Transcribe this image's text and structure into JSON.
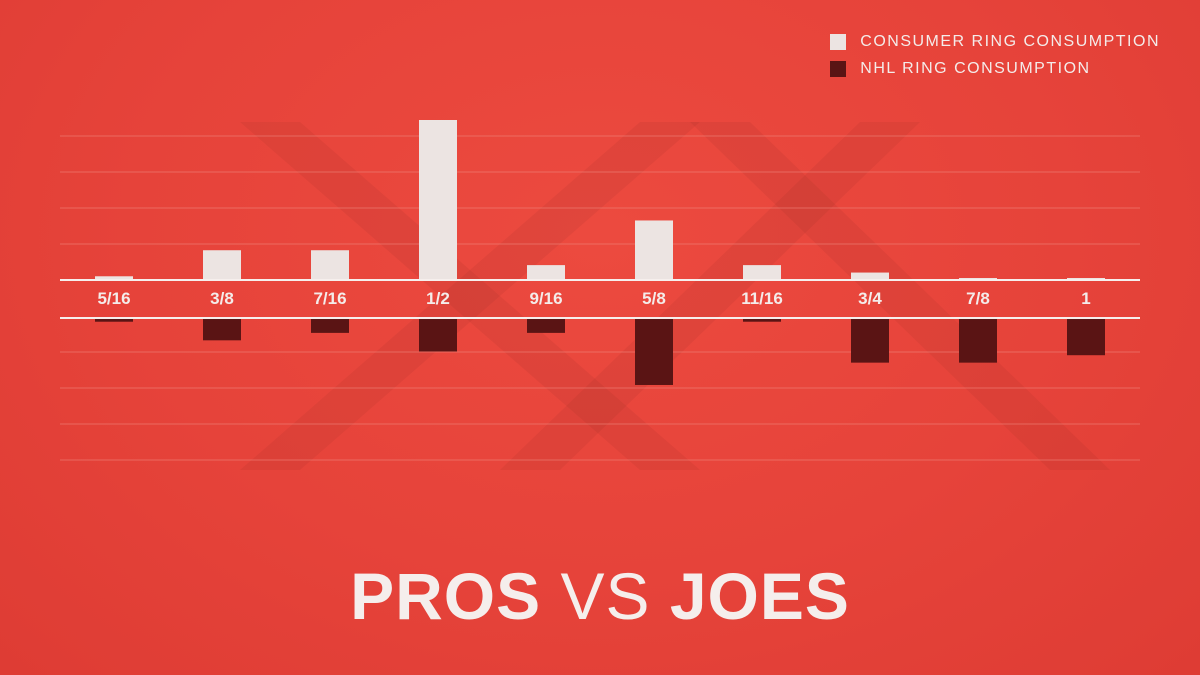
{
  "colors": {
    "background": "#e8443a",
    "consumer": "#ece4e2",
    "nhl": "#5a1414",
    "grid": "#f08a80",
    "axis": "#f6efed",
    "text": "#f4ecea"
  },
  "legend": {
    "items": [
      {
        "label": "CONSUMER RING CONSUMPTION",
        "color": "#ece4e2"
      },
      {
        "label": "NHL RING CONSUMPTION",
        "color": "#5a1414"
      }
    ]
  },
  "headline": {
    "part1": "PROS",
    "part2": "VS",
    "part3": "JOES"
  },
  "chart_data": {
    "type": "bar",
    "orientation": "diverging",
    "categories": [
      "5/16",
      "3/8",
      "7/16",
      "1/2",
      "9/16",
      "5/8",
      "11/16",
      "3/4",
      "7/8",
      "1"
    ],
    "series": [
      {
        "name": "CONSUMER RING CONSUMPTION",
        "direction": "up",
        "values": [
          1,
          8,
          8,
          43,
          4,
          16,
          4,
          2,
          0.4,
          0.4
        ]
      },
      {
        "name": "NHL RING CONSUMPTION",
        "direction": "down",
        "values": [
          1,
          6,
          4,
          9,
          4,
          18,
          1,
          12,
          12,
          10
        ]
      }
    ],
    "ylim": [
      0,
      43
    ],
    "grid": true,
    "legend_position": "top-right"
  }
}
